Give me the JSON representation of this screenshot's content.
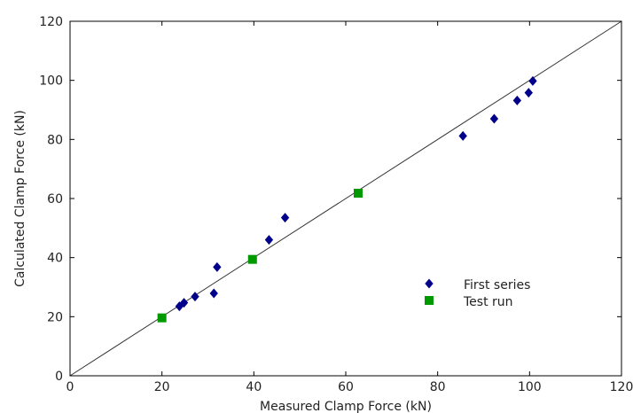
{
  "chart_data": {
    "type": "scatter",
    "title": "",
    "xlabel": "Measured Clamp Force (kN)",
    "ylabel": "Calculated Clamp Force (kN)",
    "xlim": [
      0,
      120
    ],
    "ylim": [
      0,
      120
    ],
    "xticks": [
      0,
      20,
      40,
      60,
      80,
      100,
      120
    ],
    "yticks": [
      0,
      20,
      40,
      60,
      80,
      100,
      120
    ],
    "grid": false,
    "legend_position": "lower-right",
    "reference_line": {
      "from": [
        0,
        0
      ],
      "to": [
        120,
        120
      ],
      "color": "#333333"
    },
    "series": [
      {
        "name": "First series",
        "marker": "diamond",
        "color": "#00008b",
        "points": [
          [
            23.8,
            23.5
          ],
          [
            24.8,
            24.7
          ],
          [
            27.2,
            26.8
          ],
          [
            31.3,
            27.9
          ],
          [
            32.0,
            36.8
          ],
          [
            43.3,
            46.0
          ],
          [
            46.8,
            53.5
          ],
          [
            85.5,
            81.2
          ],
          [
            92.3,
            87.0
          ],
          [
            97.3,
            93.2
          ],
          [
            99.8,
            95.8
          ],
          [
            100.7,
            99.8
          ]
        ]
      },
      {
        "name": "Test run",
        "marker": "square",
        "color": "#009900",
        "points": [
          [
            20.0,
            19.6
          ],
          [
            39.7,
            39.4
          ],
          [
            62.7,
            61.8
          ]
        ]
      }
    ]
  }
}
